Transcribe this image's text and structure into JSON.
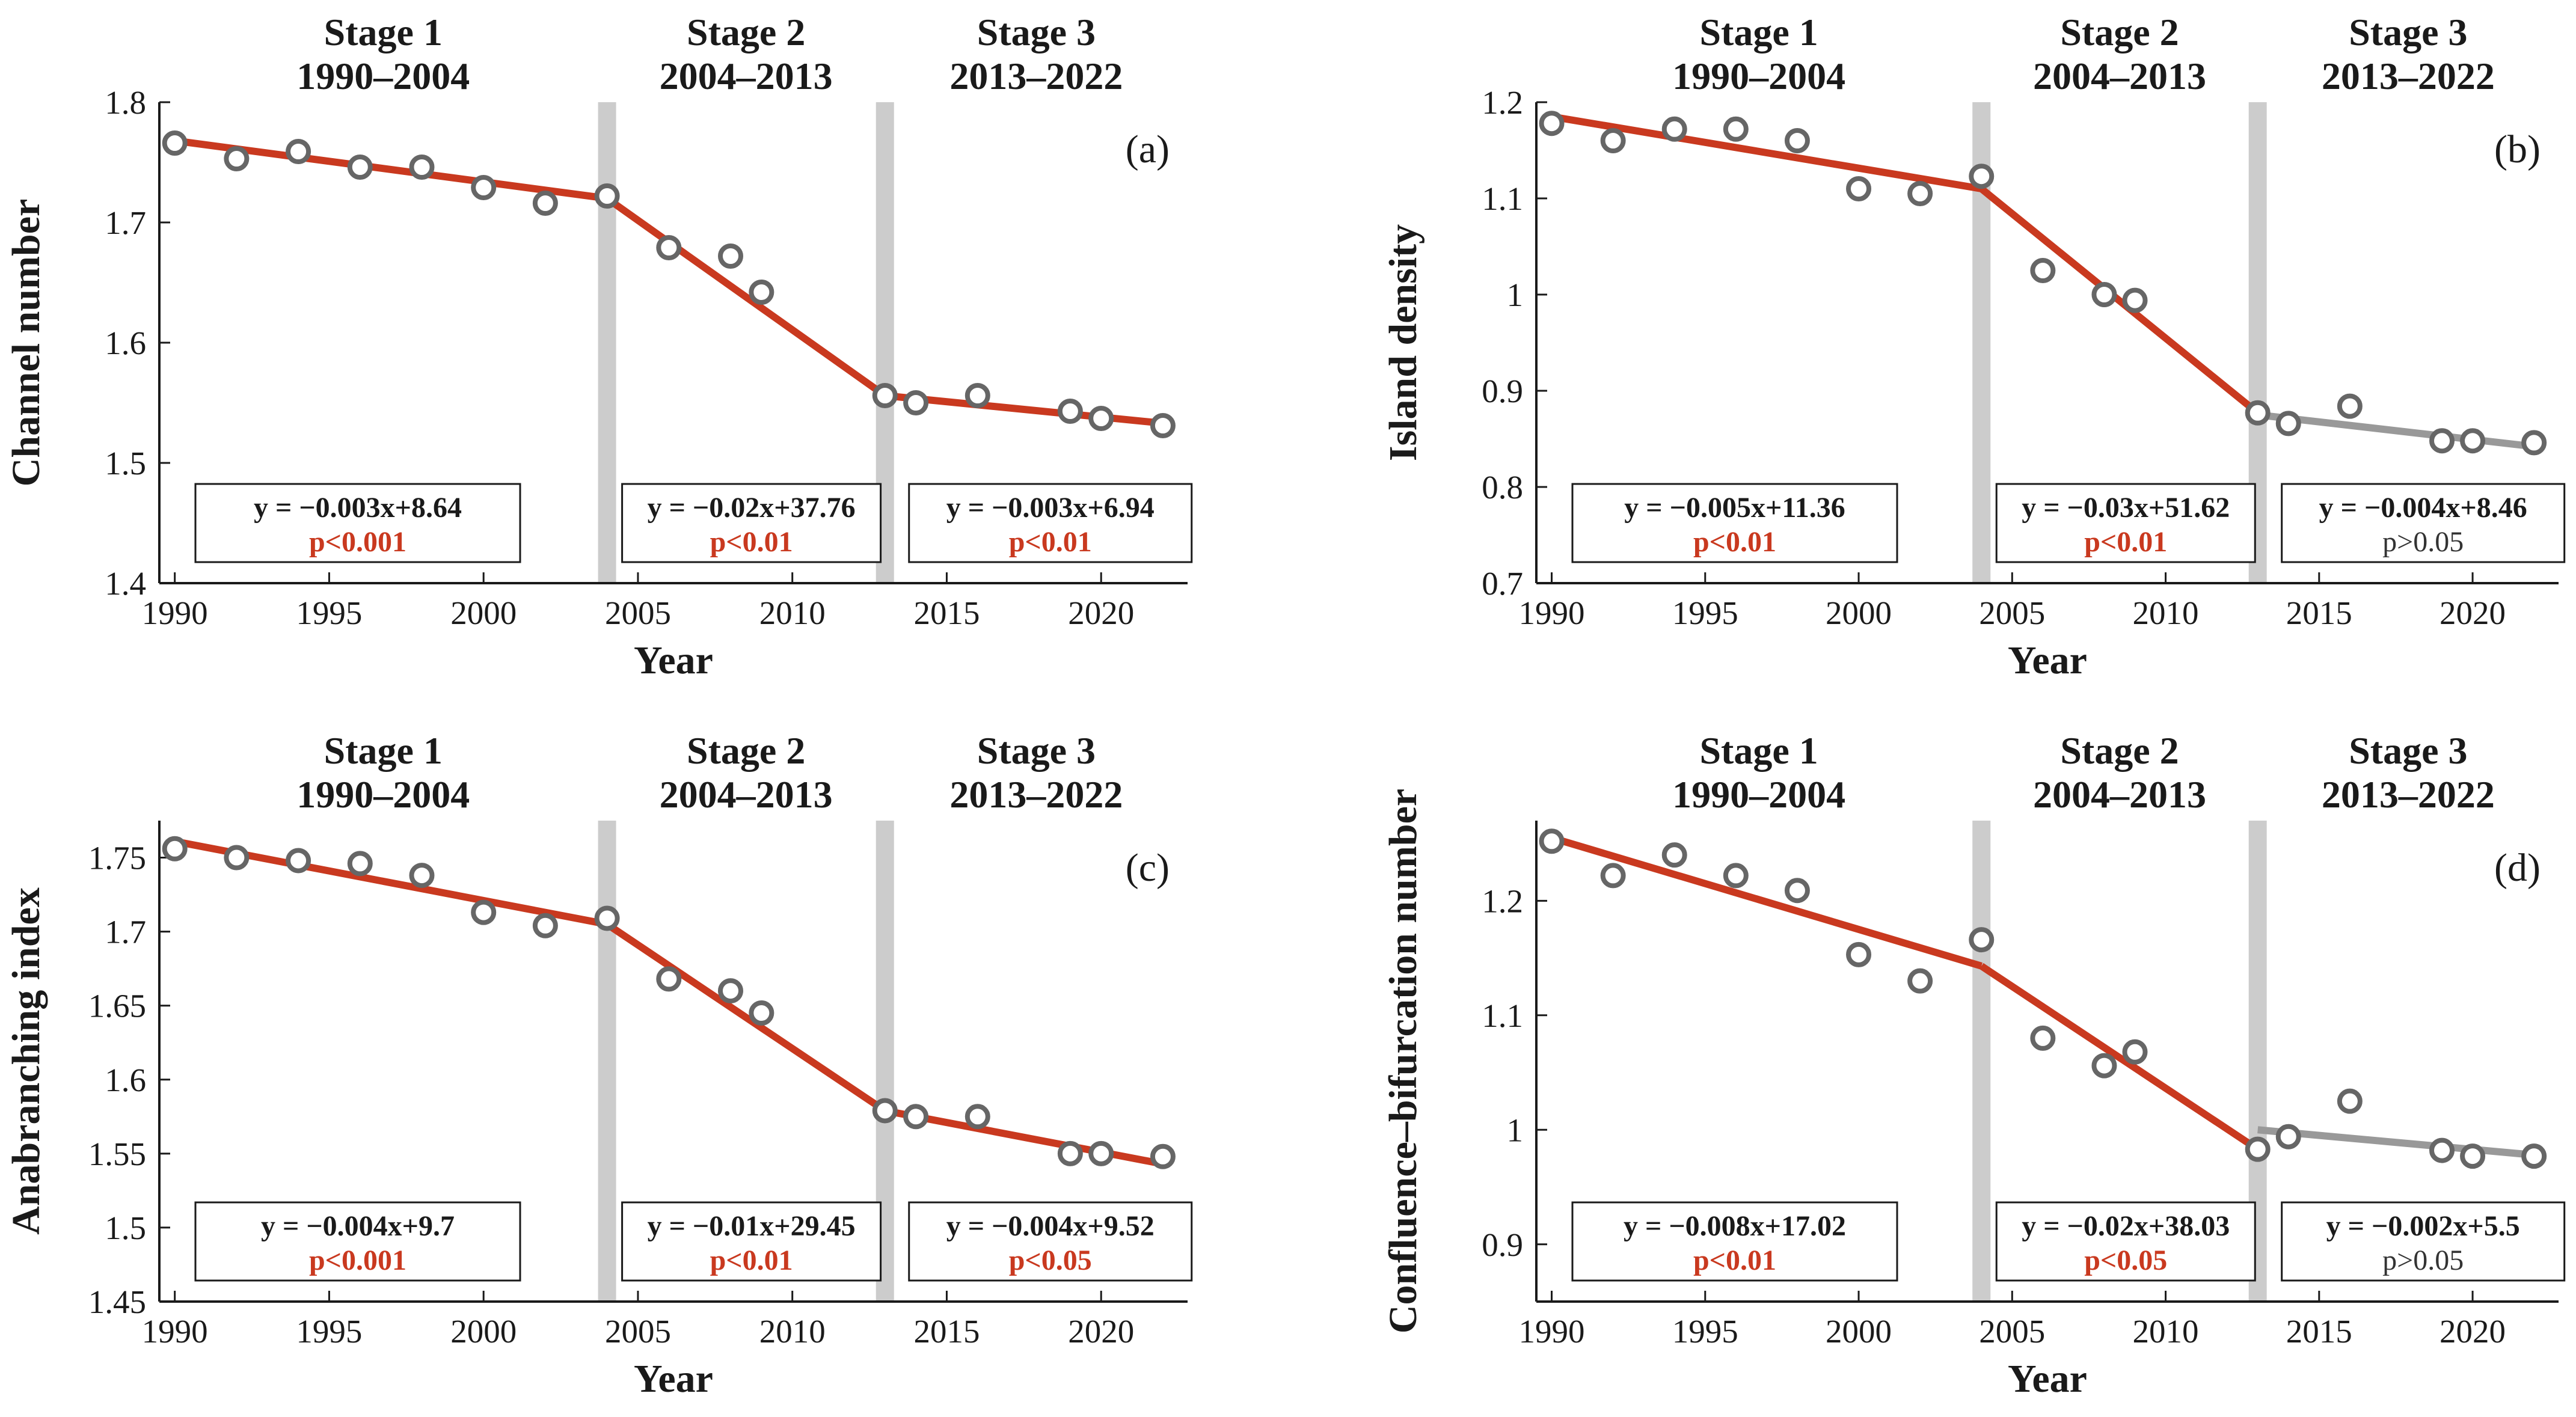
{
  "colors": {
    "significant_line": "#c9391f",
    "nonsignificant_line": "#999999",
    "marker": "#666666",
    "stage_divider": "#cccccc",
    "significant_p_text": "#c9391f",
    "nonsignificant_p_text": "#333333"
  },
  "stages": [
    {
      "name": "Stage 1",
      "period": "1990–2004"
    },
    {
      "name": "Stage 2",
      "period": "2004–2013"
    },
    {
      "name": "Stage 3",
      "period": "2013–2022"
    }
  ],
  "chart_data": [
    {
      "type": "scatter",
      "panel_label": "(a)",
      "xlabel": "Year",
      "ylabel": "Channel number",
      "xlim": [
        1989.5,
        2022.8
      ],
      "ylim": [
        1.4,
        1.8
      ],
      "xticks": [
        1990,
        1995,
        2000,
        2005,
        2010,
        2015,
        2020
      ],
      "yticks": [
        1.4,
        1.5,
        1.6,
        1.7,
        1.8
      ],
      "ytick_labels": [
        "1.4",
        "1.5",
        "1.6",
        "1.7",
        "1.8"
      ],
      "stage_dividers": [
        2004,
        2013
      ],
      "points": {
        "x": [
          1990,
          1992,
          1994,
          1996,
          1998,
          2000,
          2002,
          2004,
          2006,
          2008,
          2009,
          2013,
          2014,
          2016,
          2019,
          2020,
          2022
        ],
        "y": [
          1.766,
          1.753,
          1.759,
          1.746,
          1.746,
          1.729,
          1.716,
          1.722,
          1.679,
          1.672,
          1.642,
          1.556,
          1.55,
          1.556,
          1.543,
          1.537,
          1.531
        ]
      },
      "fits": [
        {
          "x": [
            1990,
            2004
          ],
          "y": [
            1.768,
            1.72
          ],
          "significant": true,
          "equation": "y = −0.003x+8.64",
          "p": "p<0.001"
        },
        {
          "x": [
            2004,
            2013
          ],
          "y": [
            1.72,
            1.556
          ],
          "significant": true,
          "equation": "y = −0.02x+37.76",
          "p": "p<0.01"
        },
        {
          "x": [
            2013,
            2022
          ],
          "y": [
            1.556,
            1.533
          ],
          "significant": true,
          "equation": "y = −0.003x+6.94",
          "p": "p<0.01"
        }
      ]
    },
    {
      "type": "scatter",
      "panel_label": "(b)",
      "xlabel": "Year",
      "ylabel": "Island density",
      "xlim": [
        1989.5,
        2022.8
      ],
      "ylim": [
        0.7,
        1.2
      ],
      "xticks": [
        1990,
        1995,
        2000,
        2005,
        2010,
        2015,
        2020
      ],
      "yticks": [
        0.7,
        0.8,
        0.9,
        1.0,
        1.1,
        1.2
      ],
      "ytick_labels": [
        "0.7",
        "0.8",
        "0.9",
        "1",
        "1.1",
        "1.2"
      ],
      "stage_dividers": [
        2004,
        2013
      ],
      "points": {
        "x": [
          1990,
          1992,
          1994,
          1996,
          1998,
          2000,
          2002,
          2004,
          2006,
          2008,
          2009,
          2013,
          2014,
          2016,
          2019,
          2020,
          2022
        ],
        "y": [
          1.178,
          1.16,
          1.172,
          1.172,
          1.16,
          1.11,
          1.105,
          1.123,
          1.025,
          1.0,
          0.994,
          0.877,
          0.866,
          0.884,
          0.848,
          0.848,
          0.846
        ]
      },
      "fits": [
        {
          "x": [
            1990,
            2004
          ],
          "y": [
            1.185,
            1.11
          ],
          "significant": true,
          "equation": "y = −0.005x+11.36",
          "p": "p<0.01"
        },
        {
          "x": [
            2004,
            2013
          ],
          "y": [
            1.11,
            0.877
          ],
          "significant": true,
          "equation": "y = −0.03x+51.62",
          "p": "p<0.01"
        },
        {
          "x": [
            2013,
            2022
          ],
          "y": [
            0.875,
            0.842
          ],
          "significant": false,
          "equation": "y = −0.004x+8.46",
          "p": "p>0.05"
        }
      ]
    },
    {
      "type": "scatter",
      "panel_label": "(c)",
      "xlabel": "Year",
      "ylabel": "Anabranching index",
      "xlim": [
        1989.5,
        2022.8
      ],
      "ylim": [
        1.45,
        1.775
      ],
      "xticks": [
        1990,
        1995,
        2000,
        2005,
        2010,
        2015,
        2020
      ],
      "yticks": [
        1.45,
        1.5,
        1.55,
        1.6,
        1.65,
        1.7,
        1.75
      ],
      "ytick_labels": [
        "1.45",
        "1.5",
        "1.55",
        "1.6",
        "1.65",
        "1.7",
        "1.75"
      ],
      "stage_dividers": [
        2004,
        2013
      ],
      "points": {
        "x": [
          1990,
          1992,
          1994,
          1996,
          1998,
          2000,
          2002,
          2004,
          2006,
          2008,
          2009,
          2013,
          2014,
          2016,
          2019,
          2020,
          2022
        ],
        "y": [
          1.756,
          1.75,
          1.748,
          1.746,
          1.738,
          1.713,
          1.704,
          1.709,
          1.668,
          1.66,
          1.645,
          1.579,
          1.575,
          1.575,
          1.55,
          1.55,
          1.548
        ]
      },
      "fits": [
        {
          "x": [
            1990,
            2004
          ],
          "y": [
            1.761,
            1.705
          ],
          "significant": true,
          "equation": "y = −0.004x+9.7",
          "p": "p<0.001"
        },
        {
          "x": [
            2004,
            2013
          ],
          "y": [
            1.705,
            1.579
          ],
          "significant": true,
          "equation": "y = −0.01x+29.45",
          "p": "p<0.01"
        },
        {
          "x": [
            2013,
            2022
          ],
          "y": [
            1.579,
            1.543
          ],
          "significant": true,
          "equation": "y = −0.004x+9.52",
          "p": "p<0.05"
        }
      ]
    },
    {
      "type": "scatter",
      "panel_label": "(d)",
      "xlabel": "Year",
      "ylabel": "Confluence–bifurcation number",
      "xlim": [
        1989.5,
        2022.8
      ],
      "ylim": [
        0.85,
        1.27
      ],
      "xticks": [
        1990,
        1995,
        2000,
        2005,
        2010,
        2015,
        2020
      ],
      "yticks": [
        0.9,
        1.0,
        1.1,
        1.2
      ],
      "ytick_labels": [
        "0.9",
        "1",
        "1.1",
        "1.2"
      ],
      "stage_dividers": [
        2004,
        2013
      ],
      "points": {
        "x": [
          1990,
          1992,
          1994,
          1996,
          1998,
          2000,
          2002,
          2004,
          2006,
          2008,
          2009,
          2013,
          2014,
          2016,
          2019,
          2020,
          2022
        ],
        "y": [
          1.252,
          1.222,
          1.24,
          1.222,
          1.209,
          1.153,
          1.13,
          1.166,
          1.08,
          1.056,
          1.068,
          0.983,
          0.994,
          1.025,
          0.982,
          0.977,
          0.977
        ]
      },
      "fits": [
        {
          "x": [
            1990,
            2004
          ],
          "y": [
            1.255,
            1.143
          ],
          "significant": true,
          "equation": "y = −0.008x+17.02",
          "p": "p<0.01"
        },
        {
          "x": [
            2004,
            2013
          ],
          "y": [
            1.143,
            0.983
          ],
          "significant": true,
          "equation": "y = −0.02x+38.03",
          "p": "p<0.05"
        },
        {
          "x": [
            2013,
            2022
          ],
          "y": [
            1.0,
            0.978
          ],
          "significant": false,
          "equation": "y = −0.002x+5.5",
          "p": "p>0.05"
        }
      ]
    }
  ]
}
